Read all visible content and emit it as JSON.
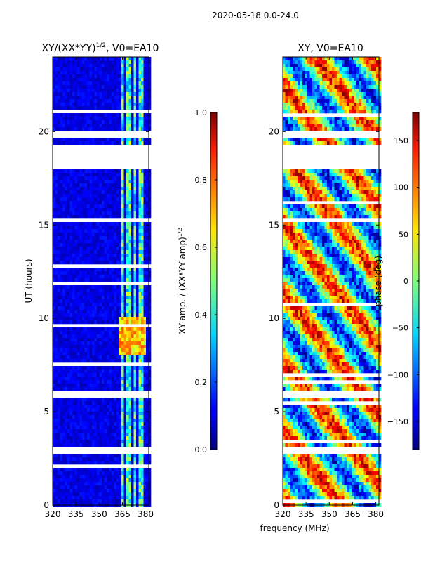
{
  "suptitle": "2020-05-18 0.0-24.0",
  "chart_data": [
    {
      "type": "heatmap",
      "title_main": "XY/(XX*YY)",
      "title_sup": "1/2",
      "title_rest": ", V0=EA10",
      "xlabel": "",
      "ylabel": "UT (hours)",
      "xlim": [
        320,
        382
      ],
      "ylim": [
        0,
        24
      ],
      "xticks": [
        320,
        335,
        350,
        365,
        380
      ],
      "yticks": [
        0,
        5,
        10,
        15,
        20
      ],
      "colorbar": {
        "label_main": "XY amp. / (XX*YY amp)",
        "label_sup": "1/2",
        "range": [
          0.0,
          1.0
        ],
        "ticks": [
          "0.0",
          "0.2",
          "0.4",
          "0.6",
          "0.8",
          "1.0"
        ],
        "tick_values": [
          0.0,
          0.2,
          0.4,
          0.6,
          0.8,
          1.0
        ]
      },
      "flagged_ut_hours": [
        [
          18.05,
          19.35
        ],
        [
          19.6,
          20.0
        ],
        [
          2.8,
          3.15
        ],
        [
          5.8,
          6.05
        ],
        [
          15.2,
          15.4
        ]
      ]
    },
    {
      "type": "heatmap",
      "title": "XY, V0=EA10",
      "xlabel": "frequency (MHz)",
      "ylabel": "",
      "xlim": [
        320,
        382
      ],
      "ylim": [
        0,
        24
      ],
      "xticks": [
        320,
        335,
        350,
        365,
        380
      ],
      "yticks": [
        0,
        5,
        10,
        15,
        20
      ],
      "colorbar": {
        "label": "phase (deg)",
        "range": [
          -180,
          180
        ],
        "ticks": [
          "150",
          "100",
          "50",
          "0",
          "−50",
          "−100",
          "−150"
        ],
        "tick_values": [
          150,
          100,
          50,
          0,
          -50,
          -100,
          -150
        ]
      },
      "flagged_ut_hours": [
        [
          18.05,
          19.35
        ],
        [
          19.6,
          20.0
        ],
        [
          2.8,
          3.15
        ],
        [
          5.8,
          6.05
        ],
        [
          15.2,
          15.4
        ]
      ]
    }
  ]
}
